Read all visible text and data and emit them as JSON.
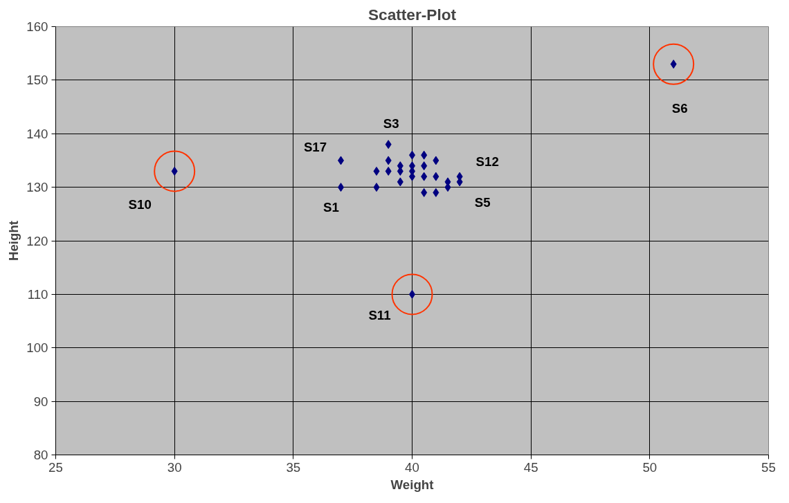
{
  "chart_data": {
    "type": "scatter",
    "title": "Scatter-Plot",
    "xlabel": "Weight",
    "ylabel": "Height",
    "xlim": [
      25,
      55
    ],
    "xticks": [
      25,
      30,
      35,
      40,
      45,
      50,
      55
    ],
    "ylim": [
      80,
      160
    ],
    "yticks": [
      80,
      90,
      100,
      110,
      120,
      130,
      140,
      150,
      160
    ],
    "grid": true,
    "marker": "diamond",
    "series": [
      {
        "color": "#000080",
        "x": [
          37,
          37,
          39,
          39,
          39,
          38.5,
          38.5,
          39.5,
          39.5,
          39.5,
          40,
          40,
          40,
          40,
          40.5,
          40.5,
          40.5,
          40.5,
          41,
          41,
          41,
          41.5,
          41.5,
          42,
          42,
          30,
          51,
          40
        ],
        "values": [
          135,
          130,
          138,
          135,
          133,
          133,
          130,
          134,
          133,
          131,
          136,
          134,
          133,
          132,
          136,
          134,
          132,
          129,
          135,
          132,
          129,
          131,
          130,
          132,
          131,
          133,
          153,
          110
        ]
      },
      {
        "color": "#ff3300",
        "marker": "circle",
        "x": [
          30,
          51,
          40
        ],
        "values": [
          133,
          153,
          110
        ]
      }
    ],
    "annotations": [
      {
        "text": "S10",
        "x": 30,
        "y": 133
      },
      {
        "text": "S6",
        "x": 51,
        "y": 153
      },
      {
        "text": "S11",
        "x": 40,
        "y": 110
      },
      {
        "text": "S3",
        "x": 39,
        "y": 138
      },
      {
        "text": "S17",
        "x": 37,
        "y": 135
      },
      {
        "text": "S1",
        "x": 37,
        "y": 130
      },
      {
        "text": "S12",
        "x": 42,
        "y": 132
      },
      {
        "text": "S5",
        "x": 42,
        "y": 131
      }
    ]
  }
}
